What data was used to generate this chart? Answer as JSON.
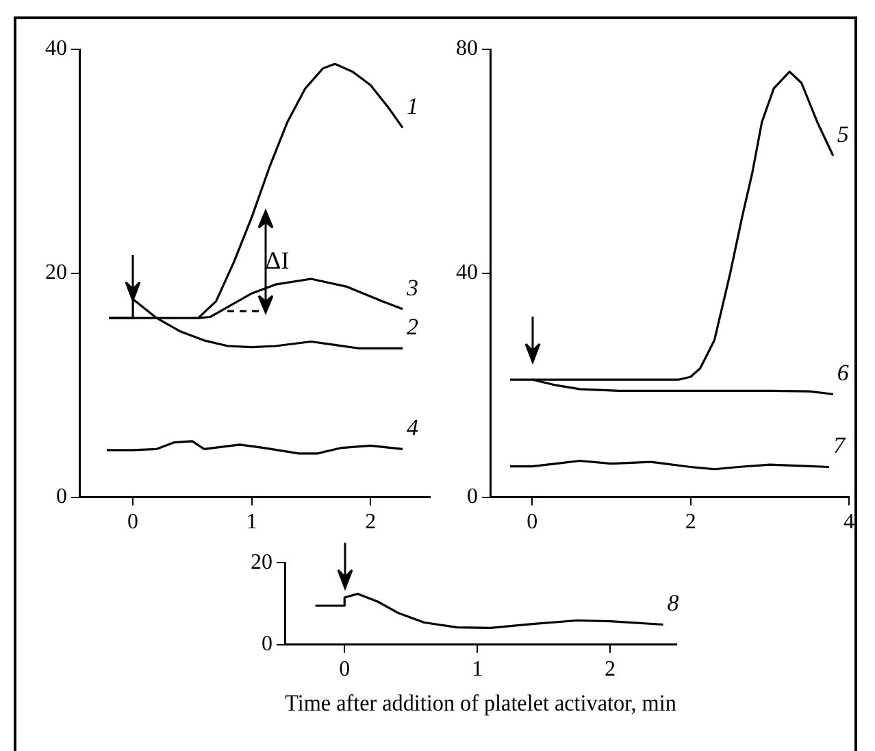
{
  "chart_data": [
    {
      "type": "line",
      "xlim": [
        -0.45,
        2.5
      ],
      "ylim": [
        0,
        40
      ],
      "xticks": [
        0,
        1,
        2
      ],
      "yticks": [
        0,
        20,
        40
      ],
      "grid": false,
      "legend": false,
      "marker": "none",
      "line_style": "solid",
      "annotations": [
        "ΔI"
      ],
      "series": [
        {
          "name": "1",
          "color": "#000000",
          "x": [
            -0.2,
            0,
            0.55,
            0.7,
            0.85,
            1,
            1.15,
            1.3,
            1.45,
            1.6,
            1.7,
            1.85,
            2,
            2.15,
            2.27
          ],
          "values": [
            16,
            16,
            16,
            17.5,
            21,
            25,
            29.5,
            33.5,
            36.5,
            38.3,
            38.7,
            38,
            36.8,
            34.8,
            33
          ]
        },
        {
          "name": "2",
          "color": "#000000",
          "x": [
            -0.2,
            0,
            0,
            0.2,
            0.4,
            0.6,
            0.8,
            1,
            1.2,
            1.5,
            1.7,
            1.9,
            2.27
          ],
          "values": [
            16,
            16,
            17.7,
            16,
            14.8,
            14,
            13.5,
            13.4,
            13.5,
            13.9,
            13.6,
            13.3,
            13.3
          ]
        },
        {
          "name": "3",
          "color": "#000000",
          "x": [
            0.55,
            0.65,
            0.8,
            1,
            1.2,
            1.5,
            1.8,
            2.1,
            2.27
          ],
          "values": [
            16,
            16.1,
            17,
            18.2,
            19,
            19.5,
            18.8,
            17.5,
            16.8
          ]
        },
        {
          "name": "4",
          "color": "#000000",
          "x": [
            -0.22,
            0,
            0.2,
            0.35,
            0.5,
            0.6,
            0.9,
            1.1,
            1.4,
            1.55,
            1.75,
            2,
            2.27
          ],
          "values": [
            4.2,
            4.2,
            4.3,
            4.9,
            5,
            4.3,
            4.7,
            4.4,
            3.9,
            3.9,
            4.4,
            4.6,
            4.3
          ]
        }
      ]
    },
    {
      "type": "line",
      "xlim": [
        -0.53,
        4
      ],
      "ylim": [
        0,
        80
      ],
      "xticks": [
        0,
        2,
        4
      ],
      "yticks": [
        0,
        40,
        80
      ],
      "grid": false,
      "legend": false,
      "marker": "none",
      "line_style": "solid",
      "series": [
        {
          "name": "5",
          "color": "#000000",
          "x": [
            -0.28,
            0,
            1.85,
            2,
            2.12,
            2.3,
            2.5,
            2.65,
            2.78,
            2.9,
            3.05,
            3.25,
            3.4,
            3.6,
            3.8
          ],
          "values": [
            21,
            21,
            21,
            21.5,
            23,
            28,
            40,
            50,
            58,
            67,
            73,
            76,
            74,
            67,
            61
          ]
        },
        {
          "name": "6",
          "color": "#000000",
          "x": [
            0,
            0.3,
            0.6,
            1.1,
            2,
            3,
            3.5,
            3.8
          ],
          "values": [
            21,
            20,
            19.3,
            19,
            19,
            19,
            18.9,
            18.4
          ]
        },
        {
          "name": "7",
          "color": "#000000",
          "x": [
            -0.28,
            0,
            0.3,
            0.6,
            1,
            1.5,
            2,
            2.3,
            2.6,
            3,
            3.4,
            3.75
          ],
          "values": [
            5.5,
            5.5,
            6,
            6.5,
            6,
            6.3,
            5.4,
            5,
            5.4,
            5.8,
            5.6,
            5.4
          ]
        }
      ]
    },
    {
      "type": "line",
      "xlim": [
        -0.45,
        2.5
      ],
      "ylim": [
        0,
        20
      ],
      "xticks": [
        0,
        1,
        2
      ],
      "yticks": [
        0,
        20
      ],
      "grid": false,
      "legend": false,
      "marker": "none",
      "line_style": "solid",
      "xlabel": "Time after addition of platelet activator, min",
      "series": [
        {
          "name": "8",
          "color": "#000000",
          "x": [
            -0.22,
            0,
            0,
            0.1,
            0.25,
            0.4,
            0.6,
            0.85,
            1.1,
            1.4,
            1.75,
            2,
            2.4
          ],
          "values": [
            9.5,
            9.5,
            11.5,
            12.4,
            10.5,
            7.8,
            5.4,
            4.2,
            4.1,
            5,
            5.9,
            5.7,
            4.9
          ]
        }
      ]
    }
  ]
}
